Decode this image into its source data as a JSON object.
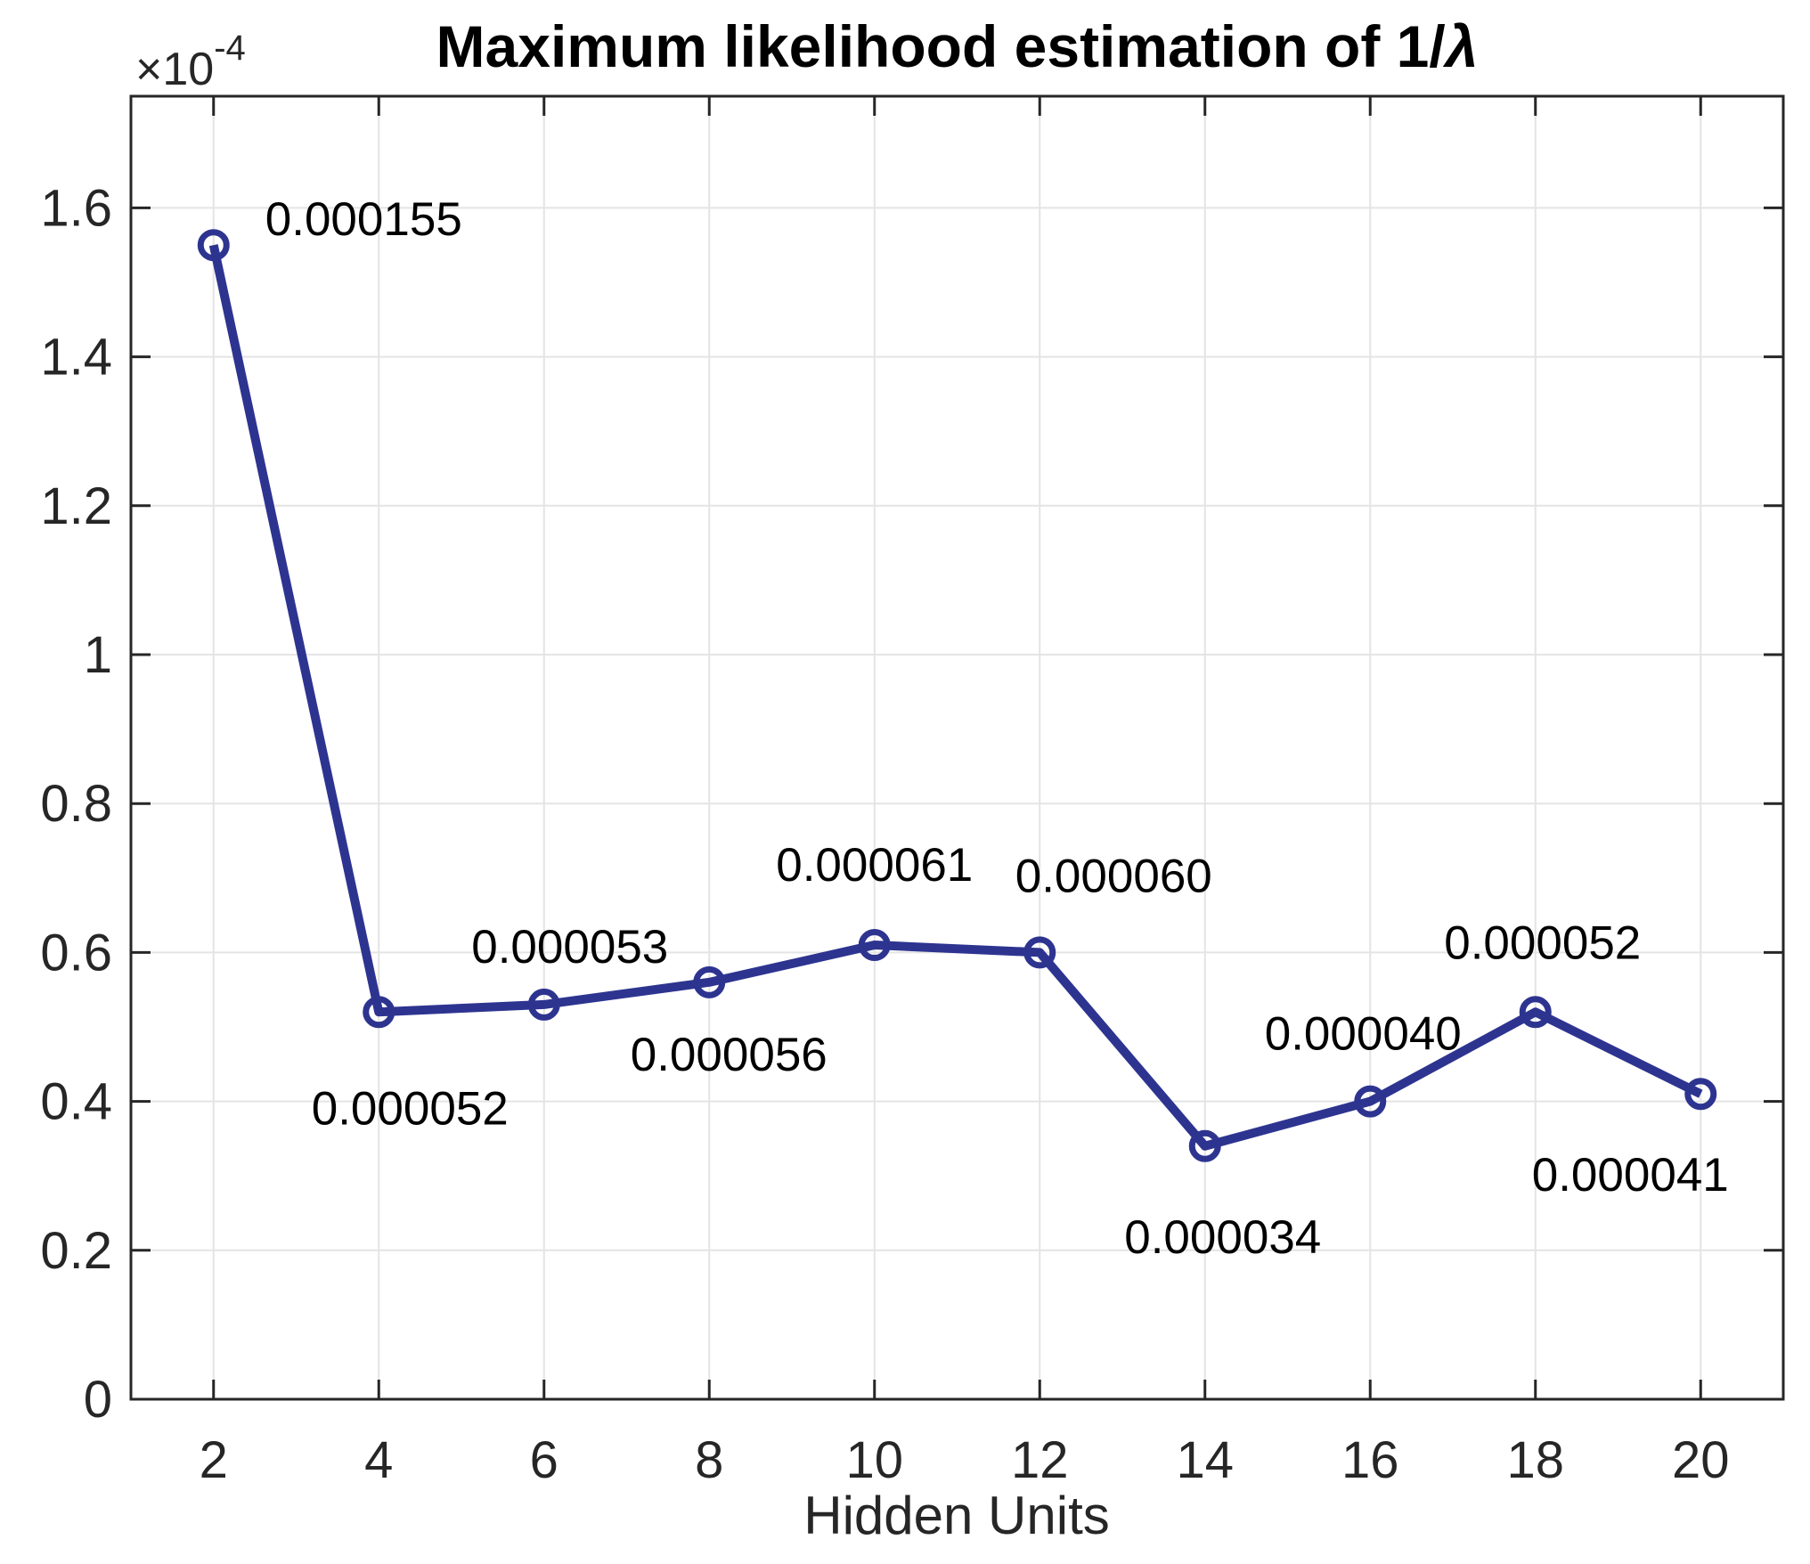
{
  "figure": {
    "background": "#ffffff"
  },
  "chart_data": {
    "type": "line",
    "title": "Maximum likelihood estimation of 1/λ",
    "title_text": "Maximum likelihood estimation of 1/",
    "title_lambda": "λ",
    "xlabel": "Hidden Units",
    "ylabel": "",
    "y_exponent_base": "×10",
    "y_exponent_power": "-4",
    "x": [
      2,
      4,
      6,
      8,
      10,
      12,
      14,
      16,
      18,
      20
    ],
    "y": [
      0.000155,
      5.2e-05,
      5.3e-05,
      5.6e-05,
      6.1e-05,
      6e-05,
      3.4e-05,
      4e-05,
      5.2e-05,
      4.1e-05
    ],
    "point_labels": [
      "0.000155",
      "0.000052",
      "0.000053",
      "0.000056",
      "0.000061",
      "0.000060",
      "0.000034",
      "0.000040",
      "0.000052",
      "0.000041"
    ],
    "y_scale": 0.0001,
    "xlim": [
      1,
      21
    ],
    "ylim_scaled": [
      0,
      1.75
    ],
    "xticks": [
      2,
      4,
      6,
      8,
      10,
      12,
      14,
      16,
      18,
      20
    ],
    "xtick_labels": [
      "2",
      "4",
      "6",
      "8",
      "10",
      "12",
      "14",
      "16",
      "18",
      "20"
    ],
    "yticks_scaled": [
      0,
      0.2,
      0.4,
      0.6,
      0.8,
      1,
      1.2,
      1.4,
      1.6
    ],
    "ytick_labels": [
      "0",
      "0.2",
      "0.4",
      "0.6",
      "0.8",
      "1",
      "1.2",
      "1.4",
      "1.6"
    ],
    "grid": true,
    "legend": "none",
    "line_color": "#2d3490",
    "marker": "open-circle",
    "marker_color": "#2d3490",
    "axis_color": "#262626",
    "grid_color": "#e4e4e4",
    "label_color": "#000000",
    "label_offsets": [
      [
        58,
        -30,
        "start"
      ],
      [
        35,
        107,
        "middle"
      ],
      [
        29,
        -66,
        "middle"
      ],
      [
        22,
        80,
        "middle"
      ],
      [
        0,
        -91,
        "middle"
      ],
      [
        83,
        -87,
        "middle"
      ],
      [
        20,
        101,
        "middle"
      ],
      [
        -8,
        -77,
        "middle"
      ],
      [
        8,
        -79,
        "middle"
      ],
      [
        -79,
        90,
        "middle"
      ]
    ]
  }
}
